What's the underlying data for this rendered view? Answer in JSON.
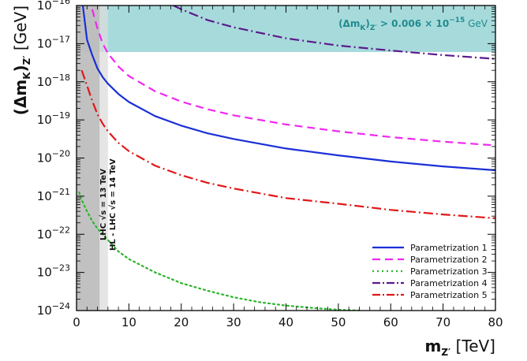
{
  "chart_data": {
    "type": "line",
    "xlabel": "m",
    "xlabel_sub": "Z′",
    "xlabel_unit": "[TeV]",
    "ylabel": "(Δm",
    "ylabel_sub1": "K",
    "ylabel_mid": ")",
    "ylabel_sub2": "Z′",
    "ylabel_unit": "[GeV]",
    "xlim": [
      0,
      80
    ],
    "ylim_log10": [
      -24,
      -16
    ],
    "yscale": "log",
    "x_ticks": [
      0,
      10,
      20,
      30,
      40,
      50,
      60,
      70,
      80
    ],
    "x_tick_labels": [
      "0",
      "10",
      "20",
      "30",
      "40",
      "50",
      "60",
      "70",
      "80"
    ],
    "y_ticks": [
      {
        "base": "10",
        "exp": "−24",
        "value": -24
      },
      {
        "base": "10",
        "exp": "−23",
        "value": -23
      },
      {
        "base": "10",
        "exp": "−22",
        "value": -22
      },
      {
        "base": "10",
        "exp": "−21",
        "value": -21
      },
      {
        "base": "10",
        "exp": "−20",
        "value": -20
      },
      {
        "base": "10",
        "exp": "−19",
        "value": -19
      },
      {
        "base": "10",
        "exp": "−18",
        "value": -18
      },
      {
        "base": "10",
        "exp": "−17",
        "value": -17
      },
      {
        "base": "10",
        "exp": "−16",
        "value": -16
      }
    ],
    "excluded_band": {
      "lower_log10": -17.22,
      "color": "#5fbcbd",
      "label": {
        "pre": "(Δm",
        "sub1": "K",
        "mid": ")",
        "sub2": "Z′",
        "gt": "> 0.006 × 10",
        "sup": "−15",
        "unit": "GeV"
      }
    },
    "lhc_bounds": [
      {
        "label": "LHC √s = 13 TeV",
        "x_max": 4.4,
        "color": "#b8b8b8"
      },
      {
        "label": "HL - LHC √s = 14 TeV",
        "x_max": 6.0,
        "color": "#dcdcdc"
      }
    ],
    "series": [
      {
        "name": "Parametrization 1",
        "color": "#1a2fd6",
        "dash": "solid",
        "x": [
          1.2,
          2,
          3,
          4,
          5,
          6,
          8,
          10,
          15,
          20,
          25,
          30,
          40,
          50,
          60,
          70,
          80
        ],
        "y_log10": [
          -16.0,
          -16.9,
          -17.3,
          -17.65,
          -17.88,
          -18.05,
          -18.32,
          -18.53,
          -18.9,
          -19.15,
          -19.35,
          -19.5,
          -19.75,
          -19.93,
          -20.09,
          -20.22,
          -20.32
        ]
      },
      {
        "name": "Parametrization 2",
        "color": "#f028f0",
        "dash": "dash",
        "x": [
          3,
          4,
          5,
          6,
          8,
          10,
          15,
          20,
          25,
          30,
          40,
          50,
          60,
          70,
          80
        ],
        "y_log10": [
          -16.1,
          -16.6,
          -17.0,
          -17.25,
          -17.6,
          -17.85,
          -18.25,
          -18.52,
          -18.72,
          -18.88,
          -19.12,
          -19.3,
          -19.45,
          -19.57,
          -19.67
        ]
      },
      {
        "name": "Parametrization 3",
        "color": "#2ab52a",
        "dash": "dot",
        "x": [
          0.5,
          1,
          2,
          3,
          4,
          5,
          6,
          8,
          10,
          15,
          20,
          25,
          30,
          35,
          40,
          45,
          50,
          54
        ],
        "y_log10": [
          -20.9,
          -21.1,
          -21.4,
          -21.65,
          -21.85,
          -22.0,
          -22.15,
          -22.45,
          -22.65,
          -23.0,
          -23.28,
          -23.48,
          -23.65,
          -23.78,
          -23.87,
          -23.93,
          -23.98,
          -24.0
        ]
      },
      {
        "name": "Parametrization 4",
        "color": "#5c1a8c",
        "dash": "dashdot",
        "x": [
          18.5,
          20,
          25,
          30,
          40,
          50,
          60,
          70,
          80
        ],
        "y_log10": [
          -16.0,
          -16.1,
          -16.38,
          -16.57,
          -16.86,
          -17.05,
          -17.18,
          -17.3,
          -17.4
        ]
      },
      {
        "name": "Parametrization 5",
        "color": "#e01818",
        "dash": "dashdot",
        "x": [
          1,
          2,
          3,
          4,
          5,
          6,
          8,
          10,
          15,
          20,
          25,
          30,
          40,
          50,
          60,
          70,
          80
        ],
        "y_log10": [
          -17.7,
          -18.1,
          -18.5,
          -18.85,
          -19.1,
          -19.3,
          -19.6,
          -19.82,
          -20.2,
          -20.45,
          -20.65,
          -20.8,
          -21.05,
          -21.2,
          -21.36,
          -21.48,
          -21.58
        ]
      }
    ],
    "legend_position": "bottom-right",
    "grid": false
  }
}
